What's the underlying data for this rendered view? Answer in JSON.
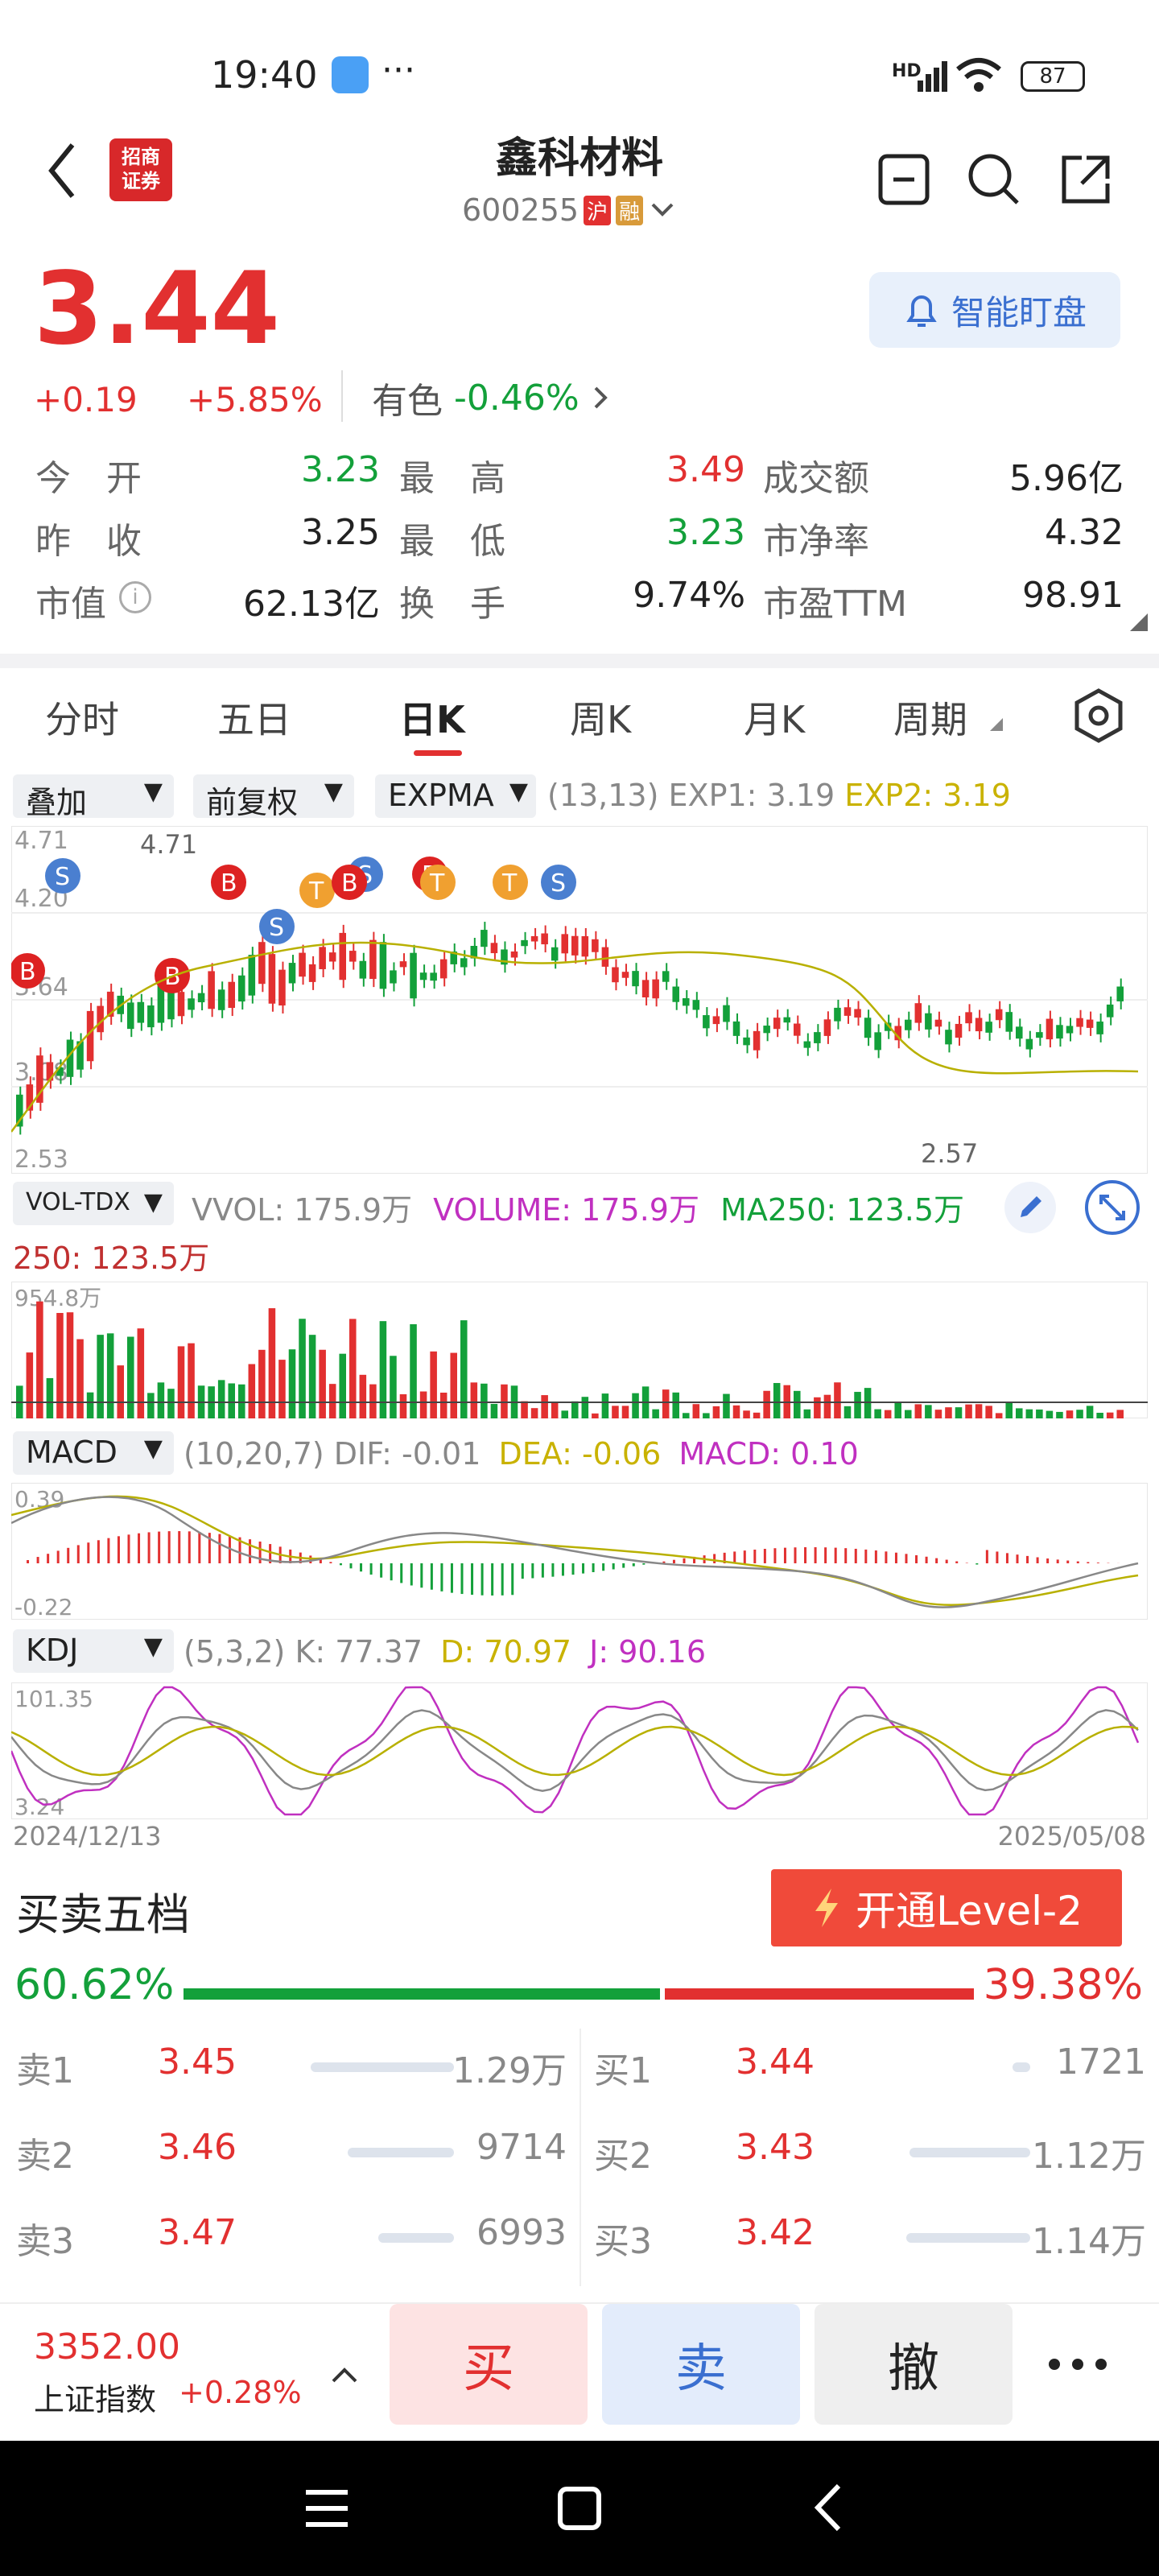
{
  "status_bar": {
    "time": "19:40",
    "network": "HD",
    "battery": "87"
  },
  "header": {
    "title": "鑫科材料",
    "code": "600255",
    "badge_sh": "沪",
    "badge_margin": "融",
    "broker_logo_text": "招商\n证券"
  },
  "quote": {
    "price": "3.44",
    "change": "+0.19",
    "change_pct": "+5.85%",
    "sector_name": "有色",
    "sector_pct": "-0.46%",
    "monitor_button": "智能盯盘",
    "stats": [
      {
        "label": "今　开",
        "value": "3.23",
        "color": "green"
      },
      {
        "label": "最　高",
        "value": "3.49",
        "color": "red"
      },
      {
        "label": "成交额",
        "value": "5.96亿",
        "color": "black"
      },
      {
        "label": "昨　收",
        "value": "3.25",
        "color": "black"
      },
      {
        "label": "最　低",
        "value": "3.23",
        "color": "green"
      },
      {
        "label": "市净率",
        "value": "4.32",
        "color": "black"
      },
      {
        "label": "市值",
        "value": "62.13亿",
        "color": "black"
      },
      {
        "label": "换　手",
        "value": "9.74%",
        "color": "black"
      },
      {
        "label": "市盈TTM",
        "value": "98.91",
        "color": "black"
      }
    ]
  },
  "tabs": [
    "分时",
    "五日",
    "日K",
    "周K",
    "月K",
    "周期"
  ],
  "active_tab": "日K",
  "main_chart": {
    "overlay_chip": "叠加",
    "adjust_chip": "前复权",
    "indicator_chip": "EXPMA",
    "params": "(13,13)",
    "exp1": "EXP1: 3.19",
    "exp2": "EXP2: 3.19",
    "axis_labels": [
      "4.71",
      "4.20",
      "3.64",
      "3.08",
      "2.53"
    ],
    "high_mark": "4.71",
    "low_mark": "2.57"
  },
  "volume": {
    "chip": "VOL-TDX",
    "vvol": "VVOL: 175.9万",
    "volume": "VOLUME: 175.9万",
    "ma250": "MA250: 123.5万",
    "ma250_wrap": "250: 123.5万",
    "axis_top": "954.8万"
  },
  "macd": {
    "chip": "MACD",
    "params": "(10,20,7)",
    "dif": "DIF: -0.01",
    "dea": "DEA: -0.06",
    "macd": "MACD: 0.10",
    "axis_top": "0.39",
    "axis_bottom": "-0.22"
  },
  "kdj": {
    "chip": "KDJ",
    "params": "(5,3,2)",
    "k": "K: 77.37",
    "d": "D: 70.97",
    "j": "J: 90.16",
    "axis_top": "101.35",
    "axis_bottom": "3.24",
    "date_start": "2024/12/13",
    "date_end": "2025/05/08"
  },
  "order_book": {
    "title": "买卖五档",
    "level2_button": "开通Level-2",
    "buy_ratio": "60.62%",
    "sell_ratio": "39.38%",
    "sells": [
      {
        "label": "卖1",
        "price": "3.45",
        "vol": "1.29万"
      },
      {
        "label": "卖2",
        "price": "3.46",
        "vol": "9714"
      },
      {
        "label": "卖3",
        "price": "3.47",
        "vol": "6993"
      }
    ],
    "buys": [
      {
        "label": "买1",
        "price": "3.44",
        "vol": "1721"
      },
      {
        "label": "买2",
        "price": "3.43",
        "vol": "1.12万"
      },
      {
        "label": "买3",
        "price": "3.42",
        "vol": "1.14万"
      }
    ]
  },
  "bottom": {
    "index_value": "3352.00",
    "index_name": "上证指数",
    "index_pct": "+0.28%",
    "buy": "买",
    "sell": "卖",
    "cancel": "撤"
  },
  "colors": {
    "up": "#e23030",
    "down": "#13a03a",
    "accent": "#f04a3a",
    "exp2": "#c9b200",
    "purple": "#c030c0"
  }
}
